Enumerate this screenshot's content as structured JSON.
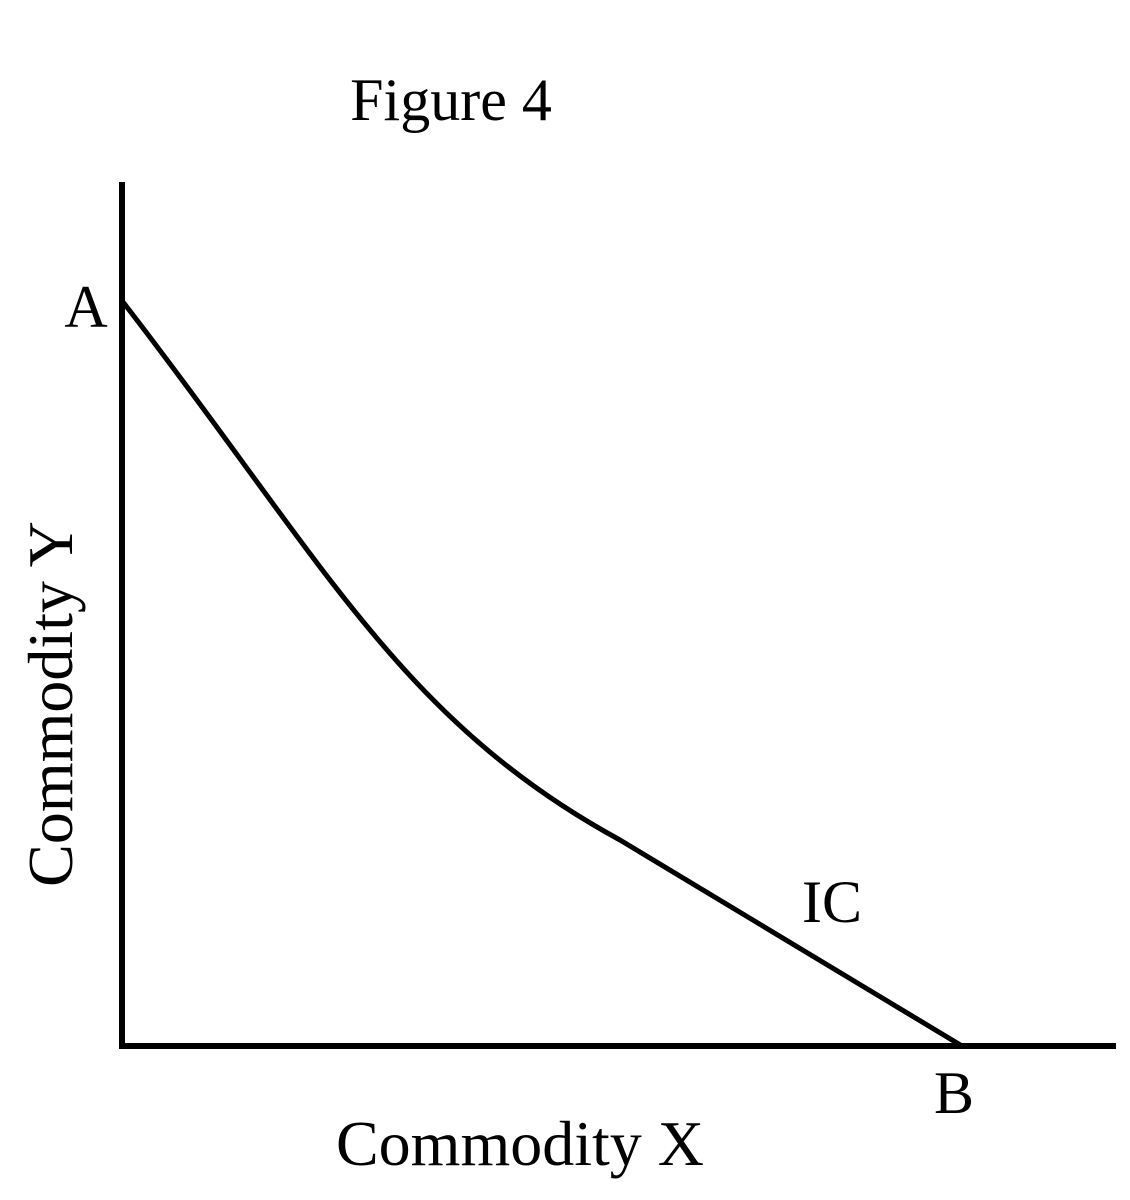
{
  "figure": {
    "title": "Figure 4"
  },
  "axes": {
    "x_label": "Commodity X",
    "y_label": "Commodity Y"
  },
  "curve": {
    "label": "IC"
  },
  "points": {
    "a": "A",
    "b": "B"
  },
  "colors": {
    "ink": "#000000",
    "background": "#ffffff"
  }
}
